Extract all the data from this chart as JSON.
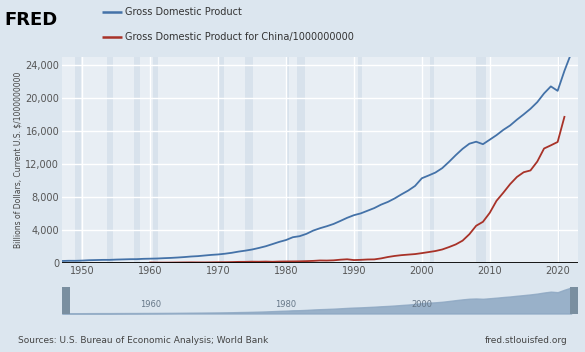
{
  "legend_usa": "Gross Domestic Product",
  "legend_china": "Gross Domestic Product for China/1000000000",
  "ylabel": "Billions of Dollars, Current U.S. $/1000000000",
  "source_left": "Sources: U.S. Bureau of Economic Analysis; World Bank",
  "source_right": "fred.stlouisfed.org",
  "fred_text": "FRED",
  "xlim": [
    1947,
    2023
  ],
  "ylim": [
    0,
    25000
  ],
  "yticks": [
    0,
    4000,
    8000,
    12000,
    16000,
    20000,
    24000
  ],
  "xticks": [
    1950,
    1960,
    1970,
    1980,
    1990,
    2000,
    2010,
    2020
  ],
  "bg_color": "#dce6ef",
  "plot_bg_color": "#e8eef4",
  "grid_color": "#ffffff",
  "usa_color": "#4472a8",
  "china_color": "#a83228",
  "recession_color": "#d8e2ec",
  "scroll_bg": "#c0cdd8",
  "scroll_fill": "#8ea8c3",
  "scroll_handle": "#7a8fa0",
  "usa_years": [
    1947,
    1948,
    1949,
    1950,
    1951,
    1952,
    1953,
    1954,
    1955,
    1956,
    1957,
    1958,
    1959,
    1960,
    1961,
    1962,
    1963,
    1964,
    1965,
    1966,
    1967,
    1968,
    1969,
    1970,
    1971,
    1972,
    1973,
    1974,
    1975,
    1976,
    1977,
    1978,
    1979,
    1980,
    1981,
    1982,
    1983,
    1984,
    1985,
    1986,
    1987,
    1988,
    1989,
    1990,
    1991,
    1992,
    1993,
    1994,
    1995,
    1996,
    1997,
    1998,
    1999,
    2000,
    2001,
    2002,
    2003,
    2004,
    2005,
    2006,
    2007,
    2008,
    2009,
    2010,
    2011,
    2012,
    2013,
    2014,
    2015,
    2016,
    2017,
    2018,
    2019,
    2020,
    2021,
    2022
  ],
  "usa_gdp": [
    244.2,
    269.2,
    267.3,
    293.8,
    339.3,
    358.3,
    379.3,
    380.4,
    414.8,
    437.5,
    461.1,
    467.2,
    506.6,
    526.4,
    544.7,
    585.6,
    617.7,
    663.6,
    719.1,
    787.8,
    832.6,
    909.8,
    984.6,
    1038.3,
    1126.8,
    1237.9,
    1382.7,
    1500.0,
    1638.3,
    1825.3,
    2030.9,
    2294.7,
    2563.3,
    2789.5,
    3128.4,
    3255.0,
    3536.7,
    3933.2,
    4220.3,
    4462.8,
    4739.5,
    5103.8,
    5484.4,
    5803.1,
    6021.0,
    6343.3,
    6667.4,
    7085.2,
    7414.7,
    7838.5,
    8332.4,
    8793.5,
    9353.5,
    10284.8,
    10621.8,
    10977.5,
    11510.7,
    12274.9,
    13093.7,
    13855.9,
    14477.6,
    14718.6,
    14418.7,
    14964.4,
    15517.9,
    16155.3,
    16691.5,
    17393.1,
    18036.6,
    18715.0,
    19519.4,
    20580.2,
    21433.2,
    20893.7,
    23315.1,
    25464.5
  ],
  "china_years": [
    1960,
    1961,
    1962,
    1963,
    1964,
    1965,
    1966,
    1967,
    1968,
    1969,
    1970,
    1971,
    1972,
    1973,
    1974,
    1975,
    1976,
    1977,
    1978,
    1979,
    1980,
    1981,
    1982,
    1983,
    1984,
    1985,
    1986,
    1987,
    1988,
    1989,
    1990,
    1991,
    1992,
    1993,
    1994,
    1995,
    1996,
    1997,
    1998,
    1999,
    2000,
    2001,
    2002,
    2003,
    2004,
    2005,
    2006,
    2007,
    2008,
    2009,
    2010,
    2011,
    2012,
    2013,
    2014,
    2015,
    2016,
    2017,
    2018,
    2019,
    2020,
    2021
  ],
  "china_gdp": [
    59.7,
    50.1,
    47.2,
    50.7,
    59.7,
    69.4,
    77.4,
    72.0,
    69.6,
    78.0,
    92.6,
    98.5,
    112.5,
    136.4,
    141.4,
    161.2,
    153.9,
    172.3,
    149.5,
    176.7,
    189.4,
    193.6,
    203.2,
    228.5,
    257.4,
    307.0,
    296.8,
    324.0,
    401.5,
    451.5,
    356.9,
    383.4,
    426.9,
    440.5,
    559.2,
    728.0,
    856.1,
    952.7,
    1019.5,
    1083.3,
    1198.5,
    1324.8,
    1453.8,
    1640.9,
    1931.6,
    2256.9,
    2712.9,
    3494.1,
    4519.9,
    4999.4,
    6087.2,
    7551.5,
    8532.2,
    9570.4,
    10438.5,
    11015.5,
    11233.3,
    12310.4,
    13894.8,
    14279.9,
    14688.0,
    17734.1
  ],
  "recession_bands": [
    [
      1948.917,
      1949.833
    ],
    [
      1953.583,
      1954.5
    ],
    [
      1957.583,
      1958.417
    ],
    [
      1960.417,
      1961.167
    ],
    [
      1969.917,
      1970.833
    ],
    [
      1973.917,
      1975.167
    ],
    [
      1980.0,
      1980.5
    ],
    [
      1981.583,
      1982.833
    ],
    [
      1990.583,
      1991.167
    ],
    [
      2001.167,
      2001.833
    ],
    [
      2007.917,
      2009.5
    ],
    [
      2020.0,
      2020.333
    ]
  ]
}
